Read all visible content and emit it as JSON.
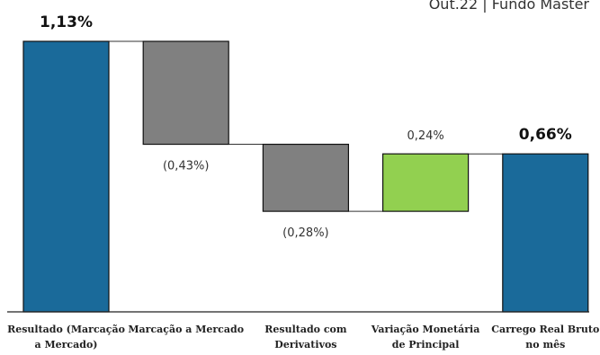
{
  "chart_data": {
    "type": "bar",
    "subtype": "waterfall",
    "title": "Out.22 | Fundo Master",
    "categories": [
      [
        "Resultado (Marcação",
        "a Mercado)"
      ],
      [
        "Marcação a Mercado"
      ],
      [
        "Resultado com",
        "Derivativos"
      ],
      [
        "Variação Monetária",
        "de Principal"
      ],
      [
        "Carrego Real Bruto",
        "no mês"
      ]
    ],
    "values": [
      1.13,
      -0.43,
      -0.28,
      0.24,
      0.66
    ],
    "bar_kind": [
      "total",
      "delta",
      "delta",
      "delta",
      "total"
    ],
    "data_labels": [
      "1,13%",
      "(0,43%)",
      "(0,28%)",
      "0,24%",
      "0,66%"
    ],
    "bold_labels": [
      true,
      false,
      false,
      false,
      true
    ],
    "colors": [
      "#1a6a9a",
      "#808080",
      "#808080",
      "#92d050",
      "#1a6a9a"
    ],
    "ylim": [
      0,
      1.13
    ],
    "grid": false,
    "legend": "none",
    "xlabel": "",
    "ylabel": ""
  }
}
